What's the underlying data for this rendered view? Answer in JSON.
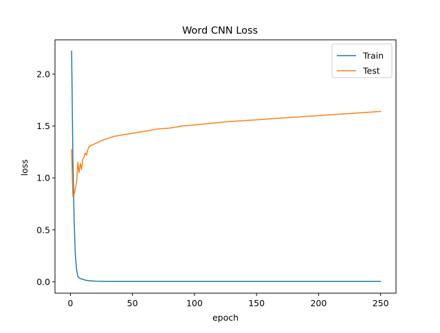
{
  "chart_data": {
    "type": "line",
    "title": "Word CNN Loss",
    "xlabel": "epoch",
    "ylabel": "loss",
    "xlim": [
      -12.4,
      262.4
    ],
    "ylim": [
      -0.11,
      2.33
    ],
    "xticks": [
      0,
      50,
      100,
      150,
      200,
      250
    ],
    "xtick_labels": [
      "0",
      "50",
      "100",
      "150",
      "200",
      "250"
    ],
    "yticks": [
      0.0,
      0.5,
      1.0,
      1.5,
      2.0
    ],
    "ytick_labels": [
      "0.0",
      "0.5",
      "1.0",
      "1.5",
      "2.0"
    ],
    "grid": false,
    "legend_position": "top-right",
    "series": [
      {
        "name": "Train",
        "color": "#1f77b4",
        "x": [
          1,
          2,
          3,
          4,
          5,
          6,
          8,
          10,
          12,
          15,
          20,
          30,
          50,
          100,
          150,
          200,
          250
        ],
        "y": [
          2.22,
          1.2,
          0.6,
          0.25,
          0.12,
          0.05,
          0.03,
          0.025,
          0.015,
          0.01,
          0.006,
          0.004,
          0.004,
          0.004,
          0.004,
          0.004,
          0.004
        ]
      },
      {
        "name": "Test",
        "color": "#ff7f0e",
        "x": [
          1,
          2,
          3,
          4,
          5,
          6,
          7,
          8,
          9,
          10,
          11,
          12,
          13,
          14,
          15,
          16,
          18,
          20,
          25,
          30,
          35,
          40,
          50,
          60,
          70,
          80,
          90,
          100,
          125,
          150,
          175,
          200,
          225,
          250
        ],
        "y": [
          1.27,
          0.82,
          0.84,
          0.9,
          0.96,
          1.15,
          1.05,
          1.14,
          1.08,
          1.18,
          1.2,
          1.24,
          1.22,
          1.27,
          1.3,
          1.31,
          1.32,
          1.33,
          1.36,
          1.38,
          1.4,
          1.41,
          1.43,
          1.45,
          1.47,
          1.48,
          1.5,
          1.51,
          1.54,
          1.56,
          1.58,
          1.6,
          1.62,
          1.64
        ]
      }
    ]
  }
}
